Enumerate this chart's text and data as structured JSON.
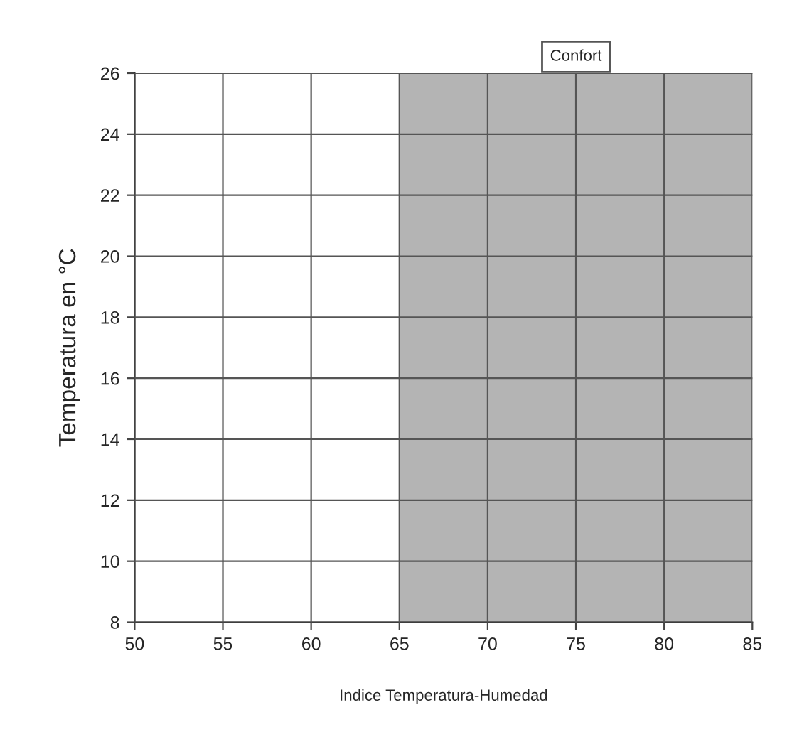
{
  "chart_data": {
    "type": "line",
    "xlabel": "Indice Temperatura-Humedad",
    "ylabel": "Temperatura en °C",
    "xlim": [
      50,
      85
    ],
    "xticks": [
      50,
      55,
      60,
      65,
      70,
      75,
      80,
      85
    ],
    "ylim": [
      8,
      26
    ],
    "yticks": [
      8,
      10,
      12,
      14,
      16,
      18,
      20,
      22,
      24,
      26
    ],
    "bands": [
      {
        "axis": "x",
        "from": 65,
        "to": 85,
        "label": "Confort",
        "color": "#b4b4b4"
      }
    ],
    "grid": true
  }
}
